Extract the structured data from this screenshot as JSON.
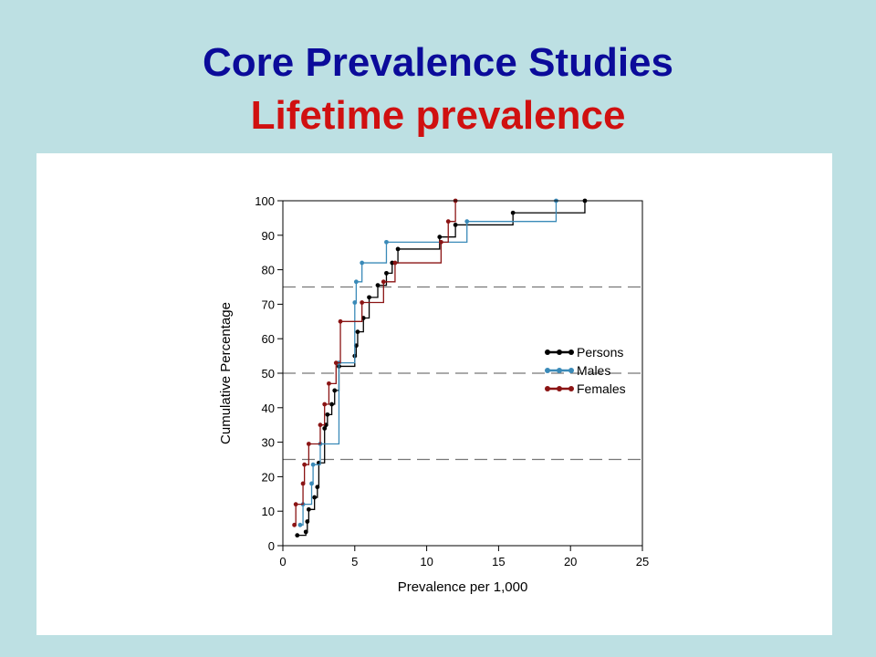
{
  "slide": {
    "title": "Core Prevalence Studies",
    "subtitle": "Lifetime prevalence"
  },
  "colors": {
    "background": "#bde0e3",
    "title": "#0b0b9a",
    "subtitle": "#d01010",
    "persons": "#000000",
    "males": "#3a8ab8",
    "females": "#8b1414",
    "reference": "#777777"
  },
  "chart_data": {
    "type": "line",
    "step": true,
    "xlabel": "Prevalence per 1,000",
    "ylabel": "Cumulative Percentage",
    "xlim": [
      0,
      25
    ],
    "ylim": [
      0,
      100
    ],
    "xticks": [
      0,
      5,
      10,
      15,
      20,
      25
    ],
    "yticks": [
      0,
      10,
      20,
      30,
      40,
      50,
      60,
      70,
      80,
      90,
      100
    ],
    "reference_lines_y": [
      25,
      50,
      75
    ],
    "legend_position": "right",
    "series": [
      {
        "name": "Persons",
        "color": "#000000",
        "points": [
          [
            1,
            3
          ],
          [
            1.6,
            4
          ],
          [
            1.7,
            7
          ],
          [
            1.8,
            10.5
          ],
          [
            2.2,
            14
          ],
          [
            2.4,
            17
          ],
          [
            2.5,
            24
          ],
          [
            2.9,
            34
          ],
          [
            3.0,
            35
          ],
          [
            3.1,
            38
          ],
          [
            3.4,
            41
          ],
          [
            3.6,
            45
          ],
          [
            3.9,
            52
          ],
          [
            5.0,
            55
          ],
          [
            5.1,
            58
          ],
          [
            5.2,
            62
          ],
          [
            5.6,
            66
          ],
          [
            6.0,
            72
          ],
          [
            6.6,
            75.5
          ],
          [
            7.2,
            79
          ],
          [
            7.6,
            82
          ],
          [
            8.0,
            86
          ],
          [
            10.9,
            89.5
          ],
          [
            12.0,
            93
          ],
          [
            16.0,
            96.5
          ],
          [
            21.0,
            100
          ]
        ]
      },
      {
        "name": "Males",
        "color": "#3a8ab8",
        "points": [
          [
            1.2,
            6
          ],
          [
            1.4,
            12
          ],
          [
            2.0,
            18
          ],
          [
            2.1,
            23.5
          ],
          [
            2.6,
            29.5
          ],
          [
            3.9,
            53
          ],
          [
            5.0,
            70.5
          ],
          [
            5.1,
            76.5
          ],
          [
            5.5,
            82
          ],
          [
            7.2,
            88
          ],
          [
            12.8,
            94
          ],
          [
            19.0,
            100
          ]
        ]
      },
      {
        "name": "Females",
        "color": "#8b1414",
        "points": [
          [
            0.8,
            6
          ],
          [
            0.9,
            12
          ],
          [
            1.4,
            18
          ],
          [
            1.5,
            23.5
          ],
          [
            1.8,
            29.5
          ],
          [
            2.6,
            35
          ],
          [
            2.9,
            41
          ],
          [
            3.2,
            47
          ],
          [
            3.7,
            53
          ],
          [
            4.0,
            65
          ],
          [
            5.5,
            70.5
          ],
          [
            7.0,
            76.5
          ],
          [
            7.8,
            82
          ],
          [
            11.0,
            88
          ],
          [
            11.5,
            94
          ],
          [
            12.0,
            100
          ]
        ]
      }
    ]
  }
}
